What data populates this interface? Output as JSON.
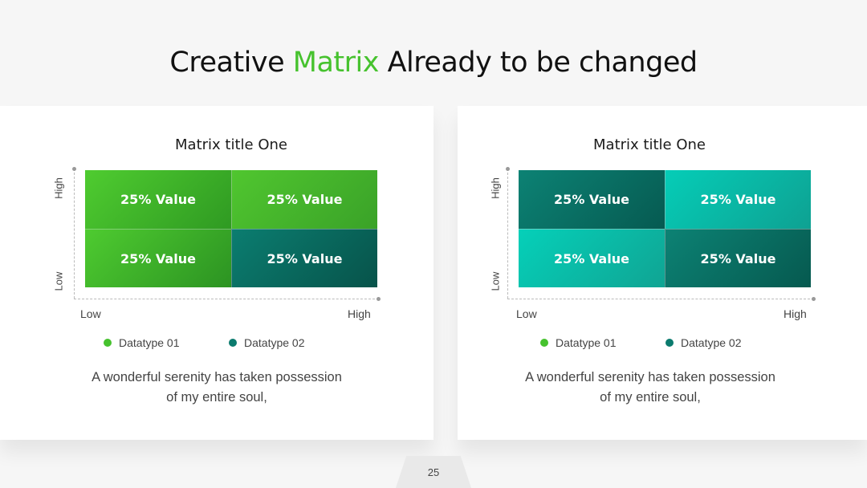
{
  "slide": {
    "title_before": "Creative ",
    "title_accent": "Matrix",
    "title_after": " Already to be changed",
    "accent_color": "#46c22e",
    "page_number": "25"
  },
  "matrices": [
    {
      "title": "Matrix title One",
      "cells": [
        "25% Value",
        "25% Value",
        "25% Value",
        "25% Value"
      ],
      "y_high": "High",
      "y_low": "Low",
      "x_low": "Low",
      "x_high": "High",
      "legend": [
        {
          "label": "Datatype 01",
          "color": "#46c22e"
        },
        {
          "label": "Datatype 02",
          "color": "#0b7b6e"
        }
      ],
      "caption_line1": "A wonderful serenity has taken possession",
      "caption_line2": "of my entire soul,"
    },
    {
      "title": "Matrix title One",
      "cells": [
        "25% Value",
        "25% Value",
        "25% Value",
        "25% Value"
      ],
      "y_high": "High",
      "y_low": "Low",
      "x_low": "Low",
      "x_high": "High",
      "legend": [
        {
          "label": "Datatype 01",
          "color": "#46c22e"
        },
        {
          "label": "Datatype 02",
          "color": "#0b7b6e"
        }
      ],
      "caption_line1": "A wonderful serenity has taken possession",
      "caption_line2": "of my entire soul,"
    }
  ]
}
